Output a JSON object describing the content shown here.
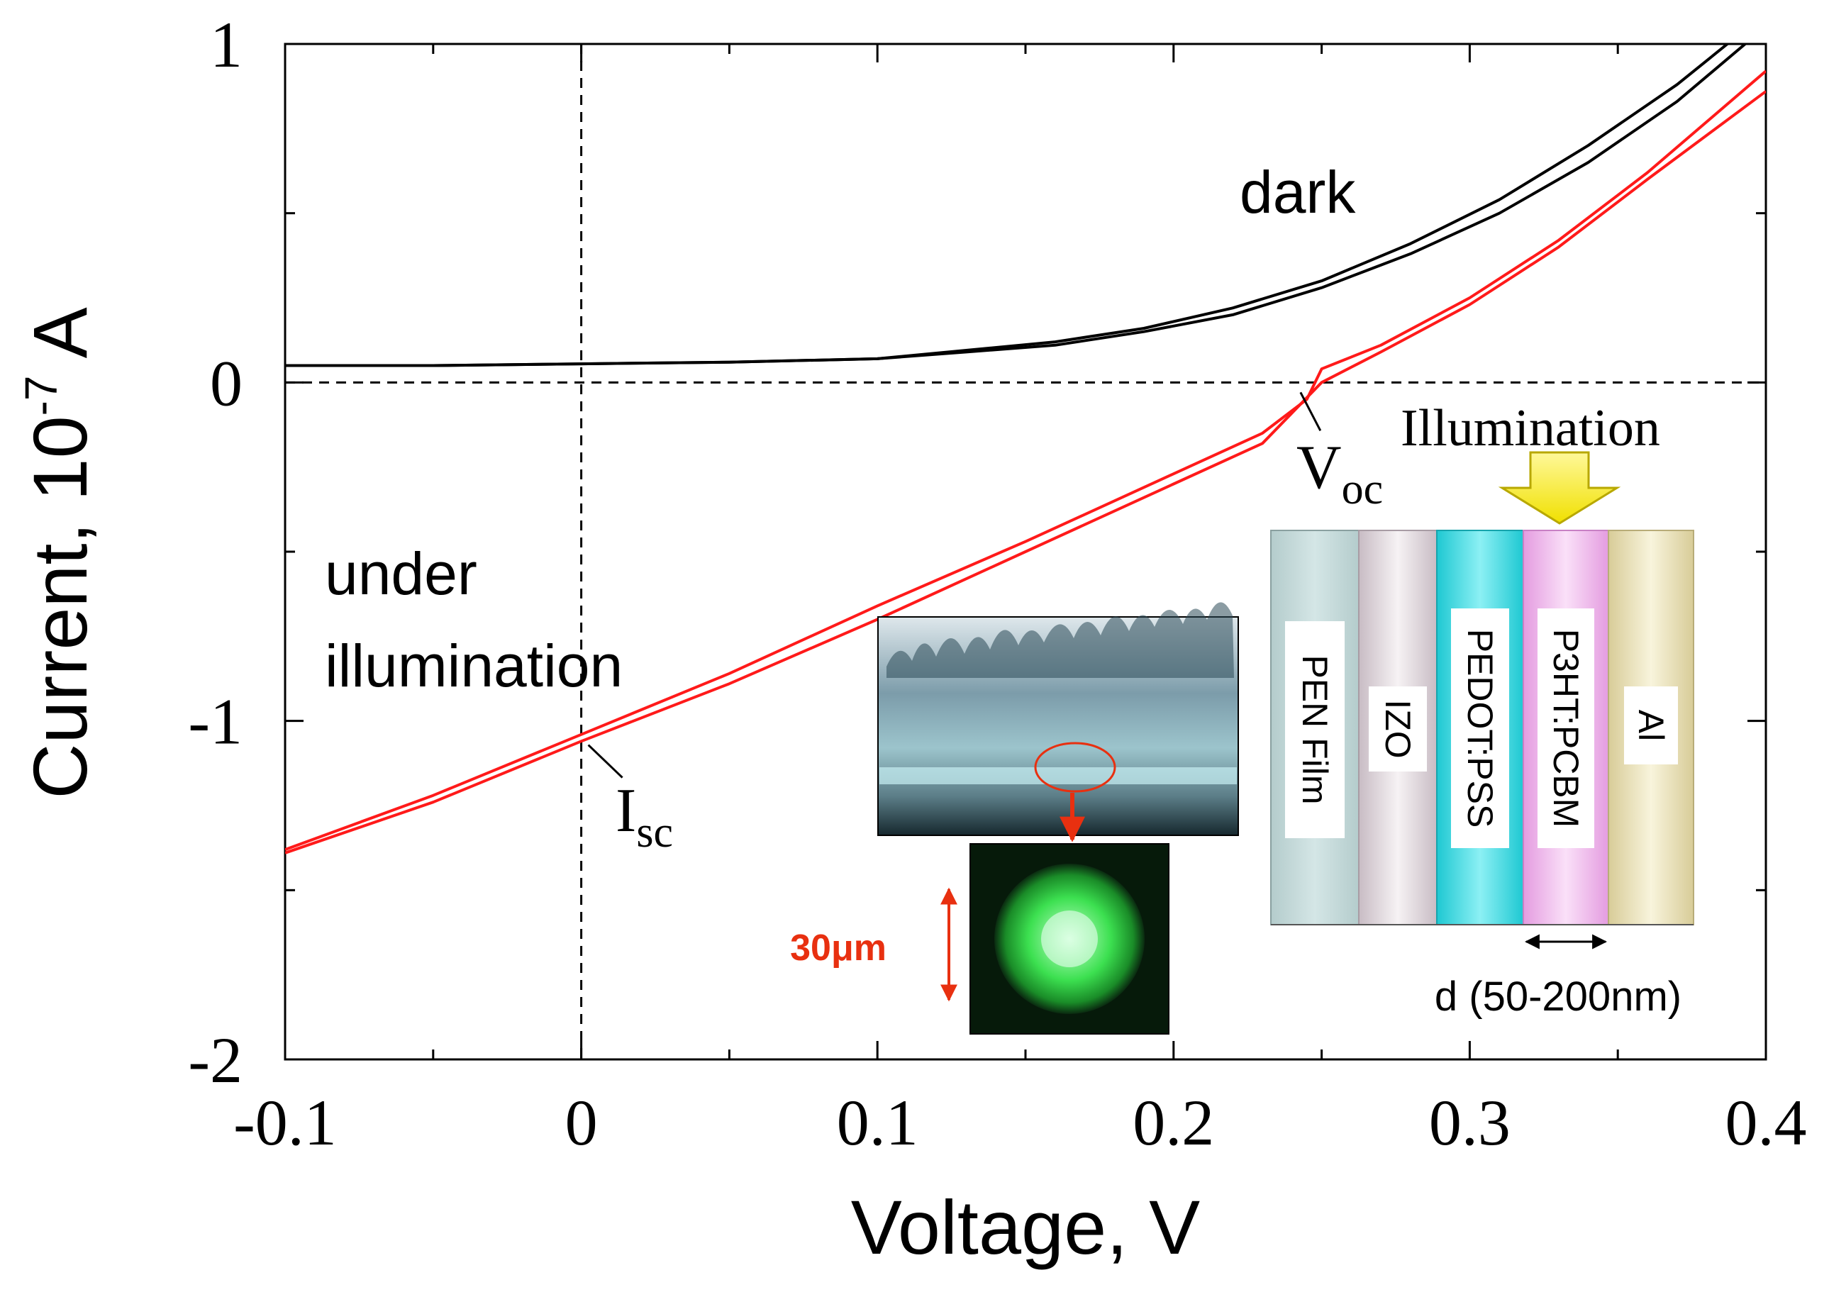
{
  "chart_data": {
    "type": "line",
    "xlabel": "Voltage, V",
    "ylabel": "Current,  10",
    "ylabel_exponent": "-7",
    "ylabel_unit": " A",
    "xlim": [
      -0.1,
      0.4
    ],
    "ylim": [
      -2,
      1
    ],
    "xticks": [
      -0.1,
      0,
      0.1,
      0.2,
      0.3,
      0.4
    ],
    "xtick_labels": [
      "-0.1",
      "0",
      "0.1",
      "0.2",
      "0.3",
      "0.4"
    ],
    "yticks": [
      -2,
      -1,
      0,
      1
    ],
    "ytick_labels": [
      "-2",
      "-1",
      "0",
      "1"
    ],
    "grid": false,
    "series": [
      {
        "name": "dark",
        "color": "#000000",
        "x": [
          -0.1,
          -0.05,
          0,
          0.05,
          0.1,
          0.13,
          0.16,
          0.19,
          0.22,
          0.25,
          0.28,
          0.31,
          0.34,
          0.37,
          0.393
        ],
        "y": [
          0.05,
          0.05,
          0.055,
          0.06,
          0.07,
          0.09,
          0.11,
          0.15,
          0.2,
          0.28,
          0.38,
          0.5,
          0.65,
          0.83,
          1.0
        ]
      },
      {
        "name": "dark",
        "color": "#000000",
        "x": [
          -0.1,
          -0.05,
          0,
          0.05,
          0.1,
          0.13,
          0.16,
          0.19,
          0.22,
          0.25,
          0.28,
          0.31,
          0.34,
          0.37,
          0.387
        ],
        "y": [
          0.05,
          0.05,
          0.055,
          0.06,
          0.07,
          0.095,
          0.12,
          0.16,
          0.22,
          0.3,
          0.41,
          0.54,
          0.7,
          0.88,
          1.0
        ]
      },
      {
        "name": "under illumination",
        "color": "#ff1a1a",
        "x": [
          -0.1,
          -0.05,
          0,
          0.05,
          0.1,
          0.15,
          0.2,
          0.23,
          0.245,
          0.25,
          0.27,
          0.3,
          0.33,
          0.36,
          0.4
        ],
        "y": [
          -1.38,
          -1.22,
          -1.04,
          -0.86,
          -0.66,
          -0.47,
          -0.27,
          -0.15,
          -0.05,
          0.04,
          0.11,
          0.25,
          0.42,
          0.62,
          0.92
        ]
      },
      {
        "name": "under illumination",
        "color": "#ff1a1a",
        "x": [
          -0.1,
          -0.05,
          0,
          0.05,
          0.1,
          0.15,
          0.2,
          0.23,
          0.24,
          0.25,
          0.27,
          0.3,
          0.33,
          0.36,
          0.4
        ],
        "y": [
          -1.39,
          -1.24,
          -1.06,
          -0.89,
          -0.7,
          -0.5,
          -0.3,
          -0.18,
          -0.09,
          0.0,
          0.09,
          0.23,
          0.4,
          0.6,
          0.86
        ]
      }
    ],
    "annotations": {
      "dark": "dark",
      "under1": "under",
      "under2": "illumination",
      "voc_main": "V",
      "voc_sub": "oc",
      "isc_main": "I",
      "isc_sub": "sc",
      "voc_point": [
        0.24,
        0
      ],
      "isc_point": [
        0,
        -1.05
      ]
    }
  },
  "inset_device": {
    "title": "Illumination",
    "layers": [
      {
        "label": "PEN Film",
        "color": "#c6dcdc"
      },
      {
        "label": "IZO",
        "color": "#e8e0e4"
      },
      {
        "label": "PEDOT:PSS",
        "color": "#3fd8e0"
      },
      {
        "label": "P3HT:PCBM",
        "color": "#f2b8ee"
      },
      {
        "label": "Al",
        "color": "#ece4bc"
      }
    ],
    "thickness_label": "d (50-200nm)",
    "arrow_color": "#ffee00"
  },
  "inset_micrograph": {
    "scale_label": "30μm",
    "marker_color": "#e83010",
    "spot_color": "#3ce050"
  }
}
